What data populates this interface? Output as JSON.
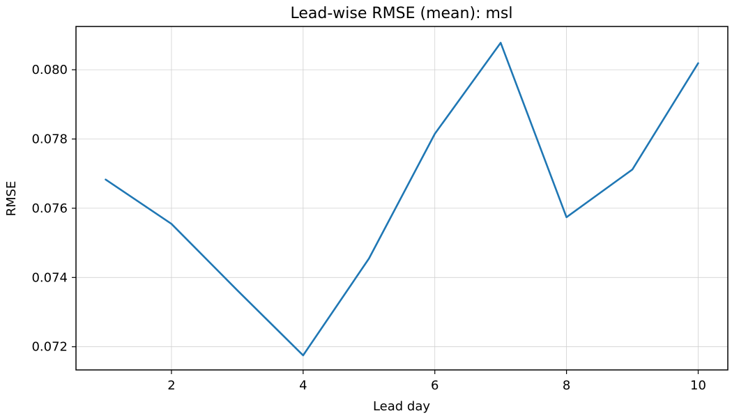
{
  "chart_data": {
    "type": "line",
    "title": "Lead-wise RMSE (mean): msl",
    "xlabel": "Lead day",
    "ylabel": "RMSE",
    "xlim": [
      0.55,
      10.45
    ],
    "ylim": [
      0.07133,
      0.08125
    ],
    "xticks": [
      2,
      4,
      6,
      8,
      10
    ],
    "xtick_labels": [
      "2",
      "4",
      "6",
      "8",
      "10"
    ],
    "yticks": [
      0.072,
      0.074,
      0.076,
      0.078,
      0.08
    ],
    "ytick_labels": [
      "0.072",
      "0.074",
      "0.076",
      "0.078",
      "0.080"
    ],
    "grid": true,
    "color": "#1f77b4",
    "x": [
      1,
      2,
      3,
      4,
      5,
      6,
      7,
      8,
      9,
      10
    ],
    "y": [
      0.07683,
      0.07555,
      0.07363,
      0.07175,
      0.07455,
      0.07815,
      0.08078,
      0.07574,
      0.07712,
      0.08019
    ]
  }
}
